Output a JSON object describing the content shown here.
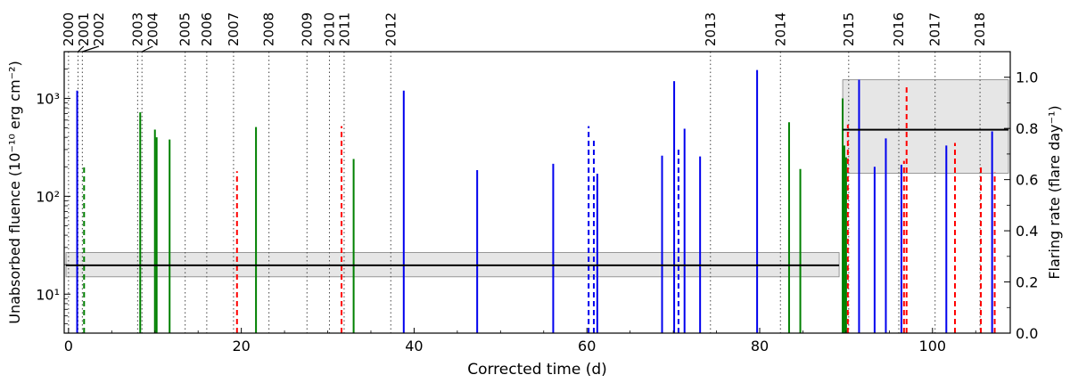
{
  "chart_data": {
    "type": "bar",
    "xlabel": "Corrected time (d)",
    "ylabel_left": "Unabsorbed fluence (10⁻¹⁰ erg cm⁻²)",
    "ylabel_right": "Flaring rate (flare day⁻¹)",
    "xlim": [
      -0.5,
      109
    ],
    "ylim_left": [
      4,
      3000
    ],
    "yscale_left": "log",
    "ylim_right": [
      0,
      1.1
    ],
    "x_ticks": [
      0,
      20,
      40,
      60,
      80,
      100
    ],
    "x_tick_labels": [
      "0",
      "20",
      "40",
      "60",
      "80",
      "100"
    ],
    "y_left_ticks": [
      10,
      100,
      1000
    ],
    "y_left_tick_labels": [
      "10¹",
      "10²",
      "10³"
    ],
    "y_right_ticks": [
      0,
      0.2,
      0.4,
      0.6,
      0.8,
      1.0
    ],
    "y_right_tick_labels": [
      "0.0",
      "0.2",
      "0.4",
      "0.6",
      "0.8",
      "1.0"
    ],
    "year_markers": [
      {
        "label": "2000",
        "x": 0.0
      },
      {
        "label": "2001",
        "x": 1.1
      },
      {
        "label": "2002",
        "x": 1.6
      },
      {
        "label": "2003",
        "x": 8.0
      },
      {
        "label": "2004",
        "x": 8.5
      },
      {
        "label": "2005",
        "x": 13.5
      },
      {
        "label": "2006",
        "x": 16.0
      },
      {
        "label": "2007",
        "x": 19.1
      },
      {
        "label": "2008",
        "x": 23.2
      },
      {
        "label": "2009",
        "x": 27.6
      },
      {
        "label": "2010",
        "x": 30.2
      },
      {
        "label": "2011",
        "x": 31.9
      },
      {
        "label": "2012",
        "x": 37.3
      },
      {
        "label": "2013",
        "x": 74.3
      },
      {
        "label": "2014",
        "x": 82.4
      },
      {
        "label": "2015",
        "x": 90.3
      },
      {
        "label": "2016",
        "x": 96.1
      },
      {
        "label": "2017",
        "x": 100.3
      },
      {
        "label": "2018",
        "x": 105.5
      }
    ],
    "rate_segments": [
      {
        "x0": -0.5,
        "x1": 89.4,
        "rate": 0.265,
        "lo": 0.22,
        "hi": 0.315
      },
      {
        "x0": 89.4,
        "x1": 109,
        "rate": 0.795,
        "lo": 0.625,
        "hi": 0.99
      }
    ],
    "flares": [
      {
        "x": 1.0,
        "fluence": 1200,
        "color": "#0000ee",
        "dashed": false
      },
      {
        "x": 1.8,
        "fluence": 210,
        "color": "#008000",
        "dashed": true
      },
      {
        "x": 8.3,
        "fluence": 720,
        "color": "#008000",
        "dashed": false
      },
      {
        "x": 10.0,
        "fluence": 480,
        "color": "#008000",
        "dashed": false
      },
      {
        "x": 10.2,
        "fluence": 400,
        "color": "#008000",
        "dashed": false
      },
      {
        "x": 11.7,
        "fluence": 380,
        "color": "#008000",
        "dashed": false
      },
      {
        "x": 19.5,
        "fluence": 180,
        "color": "#ff0000",
        "dashed": true
      },
      {
        "x": 21.7,
        "fluence": 510,
        "color": "#008000",
        "dashed": false
      },
      {
        "x": 31.6,
        "fluence": 520,
        "color": "#ff0000",
        "dashed": true
      },
      {
        "x": 33.0,
        "fluence": 240,
        "color": "#008000",
        "dashed": false
      },
      {
        "x": 38.8,
        "fluence": 1200,
        "color": "#0000ee",
        "dashed": false
      },
      {
        "x": 47.3,
        "fluence": 185,
        "color": "#0000ee",
        "dashed": false
      },
      {
        "x": 56.1,
        "fluence": 215,
        "color": "#0000ee",
        "dashed": false
      },
      {
        "x": 60.2,
        "fluence": 520,
        "color": "#0000ee",
        "dashed": true
      },
      {
        "x": 60.8,
        "fluence": 380,
        "color": "#0000ee",
        "dashed": true
      },
      {
        "x": 61.2,
        "fluence": 170,
        "color": "#0000ee",
        "dashed": false
      },
      {
        "x": 68.7,
        "fluence": 260,
        "color": "#0000ee",
        "dashed": false
      },
      {
        "x": 70.1,
        "fluence": 1500,
        "color": "#0000ee",
        "dashed": false
      },
      {
        "x": 70.6,
        "fluence": 300,
        "color": "#0000ee",
        "dashed": true
      },
      {
        "x": 71.3,
        "fluence": 490,
        "color": "#0000ee",
        "dashed": false
      },
      {
        "x": 73.1,
        "fluence": 255,
        "color": "#0000ee",
        "dashed": false
      },
      {
        "x": 79.7,
        "fluence": 1950,
        "color": "#0000ee",
        "dashed": false
      },
      {
        "x": 83.4,
        "fluence": 570,
        "color": "#008000",
        "dashed": false
      },
      {
        "x": 84.7,
        "fluence": 190,
        "color": "#008000",
        "dashed": false
      },
      {
        "x": 89.6,
        "fluence": 1000,
        "color": "#008000",
        "dashed": false
      },
      {
        "x": 89.8,
        "fluence": 330,
        "color": "#008000",
        "dashed": false
      },
      {
        "x": 90.0,
        "fluence": 250,
        "color": "#008000",
        "dashed": false
      },
      {
        "x": 90.2,
        "fluence": 540,
        "color": "#ff0000",
        "dashed": true
      },
      {
        "x": 91.5,
        "fluence": 1550,
        "color": "#0000ee",
        "dashed": false
      },
      {
        "x": 93.3,
        "fluence": 200,
        "color": "#0000ee",
        "dashed": false
      },
      {
        "x": 94.6,
        "fluence": 390,
        "color": "#0000ee",
        "dashed": false
      },
      {
        "x": 96.4,
        "fluence": 210,
        "color": "#0000ee",
        "dashed": false
      },
      {
        "x": 96.7,
        "fluence": 230,
        "color": "#ff0000",
        "dashed": true
      },
      {
        "x": 97.0,
        "fluence": 1300,
        "color": "#ff0000",
        "dashed": true
      },
      {
        "x": 101.6,
        "fluence": 330,
        "color": "#0000ee",
        "dashed": false
      },
      {
        "x": 102.6,
        "fluence": 350,
        "color": "#ff0000",
        "dashed": true
      },
      {
        "x": 105.6,
        "fluence": 205,
        "color": "#ff0000",
        "dashed": true
      },
      {
        "x": 106.9,
        "fluence": 460,
        "color": "#0000ee",
        "dashed": false
      },
      {
        "x": 107.2,
        "fluence": 175,
        "color": "#ff0000",
        "dashed": true
      }
    ],
    "grid": false,
    "legend": "none"
  }
}
